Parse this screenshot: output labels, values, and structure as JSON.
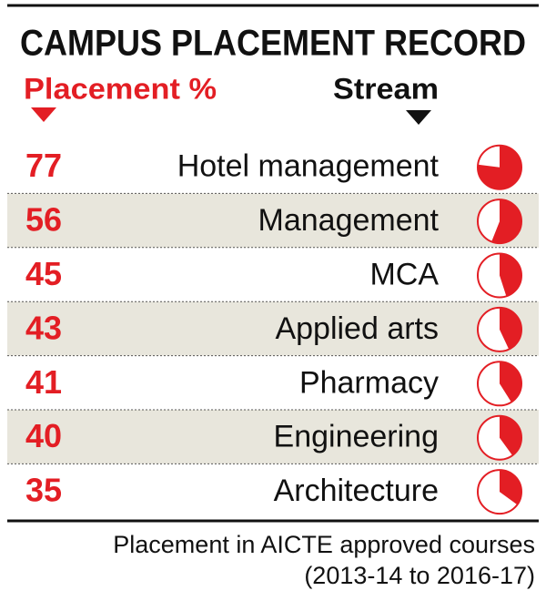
{
  "chart_data": {
    "type": "pie",
    "title": "CAMPUS PLACEMENT RECORD",
    "value_header": "Placement %",
    "category_header": "Stream",
    "categories": [
      "Hotel management",
      "Management",
      "MCA",
      "Applied arts",
      "Pharmacy",
      "Engineering",
      "Architecture"
    ],
    "values": [
      77,
      56,
      45,
      43,
      41,
      40,
      35
    ],
    "color": "#e31e24",
    "footnote": [
      "Placement in AICTE approved courses",
      "(2013-14 to 2016-17)"
    ]
  }
}
